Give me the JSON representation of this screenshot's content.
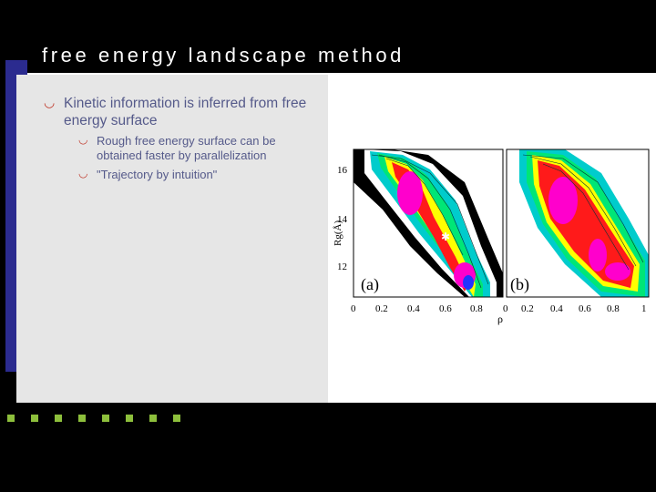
{
  "slide": {
    "title": "free energy landscape method",
    "bullets": [
      {
        "text": "Kinetic information is inferred from free energy surface"
      },
      {
        "text": "Rough free energy surface can be obtained faster by parallelization"
      },
      {
        "text": "\"Trajectory by intuition\""
      }
    ],
    "accent_color": "#2b2b8f",
    "bullet_color": "#c0392b",
    "square_color": "#8dbf3c",
    "square_count": 8
  },
  "figure": {
    "y_label": "Rg(Å)",
    "x_label": "ρ",
    "y_ticks": [
      "16",
      "14",
      "12"
    ],
    "x_ticks_a": [
      "0",
      "0.2",
      "0.4",
      "0.6",
      "0.8"
    ],
    "x_ticks_b": [
      "0",
      "0.2",
      "0.4",
      "0.6",
      "0.8",
      "1"
    ],
    "panel_a_label": "(a)",
    "panel_b_label": "(b)"
  }
}
